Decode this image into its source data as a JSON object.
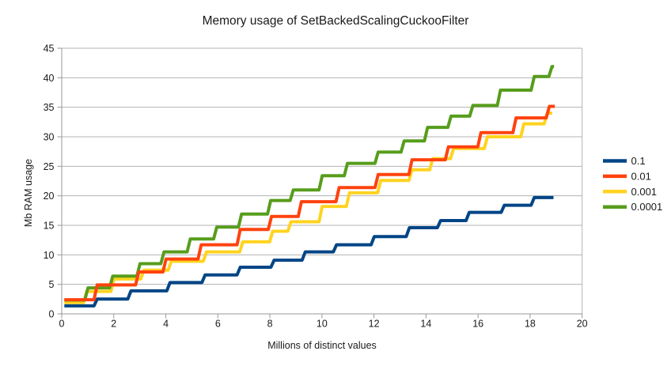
{
  "chart_data": {
    "type": "line",
    "step": true,
    "title": "Memory usage of SetBackedScalingCuckooFilter",
    "xlabel": "Millions of distinct values",
    "ylabel": "Mb RAM usage",
    "xlim": [
      0,
      20
    ],
    "ylim": [
      0,
      45
    ],
    "xticks": [
      0,
      2,
      4,
      6,
      8,
      10,
      12,
      14,
      16,
      18,
      20
    ],
    "yticks": [
      0,
      5,
      10,
      15,
      20,
      25,
      30,
      35,
      40,
      45
    ],
    "grid": "horizontal-only",
    "legend_position": "right",
    "style": {
      "background": "#ffffff",
      "grid_color": "#b3b3b3",
      "axis_color": "#999999",
      "text_color": "#1a1a1a"
    },
    "series": [
      {
        "name": "0.1",
        "color": "#004586",
        "z": 2,
        "end_x": 18.9,
        "points": [
          [
            0.1,
            1.35
          ],
          [
            1.3,
            2.5
          ],
          [
            2.6,
            3.9
          ],
          [
            4.1,
            5.3
          ],
          [
            5.45,
            6.6
          ],
          [
            6.8,
            7.9
          ],
          [
            8.1,
            9.1
          ],
          [
            9.3,
            10.5
          ],
          [
            10.5,
            11.7
          ],
          [
            11.95,
            13.1
          ],
          [
            13.3,
            14.6
          ],
          [
            14.5,
            15.8
          ],
          [
            15.6,
            17.2
          ],
          [
            16.95,
            18.4
          ],
          [
            18.1,
            19.7
          ]
        ]
      },
      {
        "name": "0.01",
        "color": "#ff420e",
        "z": 3,
        "end_x": 18.95,
        "points": [
          [
            0.1,
            2.4
          ],
          [
            1.3,
            4.9
          ],
          [
            2.9,
            7.1
          ],
          [
            3.95,
            9.3
          ],
          [
            5.3,
            11.7
          ],
          [
            6.8,
            14.3
          ],
          [
            8.0,
            16.5
          ],
          [
            9.15,
            19.0
          ],
          [
            10.6,
            21.4
          ],
          [
            12.1,
            23.6
          ],
          [
            13.4,
            26.1
          ],
          [
            14.8,
            28.3
          ],
          [
            16.05,
            30.7
          ],
          [
            17.4,
            33.2
          ],
          [
            18.68,
            35.15
          ]
        ]
      },
      {
        "name": "0.001",
        "color": "#ffd320",
        "z": 0,
        "end_x": 18.85,
        "points": [
          [
            0.1,
            1.9
          ],
          [
            0.9,
            3.8
          ],
          [
            1.95,
            5.9
          ],
          [
            3.1,
            7.4
          ],
          [
            4.15,
            8.9
          ],
          [
            5.5,
            10.5
          ],
          [
            6.9,
            12.2
          ],
          [
            8.05,
            14.0
          ],
          [
            8.75,
            15.6
          ],
          [
            9.95,
            18.2
          ],
          [
            11.0,
            20.5
          ],
          [
            12.2,
            22.6
          ],
          [
            13.4,
            24.4
          ],
          [
            14.2,
            26.3
          ],
          [
            15.0,
            28.0
          ],
          [
            16.3,
            30.0
          ],
          [
            17.7,
            32.2
          ],
          [
            18.6,
            34.0
          ]
        ]
      },
      {
        "name": "0.0001",
        "color": "#579d1c",
        "z": 1,
        "end_x": 18.92,
        "points": [
          [
            0.1,
            2.35
          ],
          [
            0.95,
            4.4
          ],
          [
            1.9,
            6.4
          ],
          [
            2.95,
            8.5
          ],
          [
            3.87,
            10.5
          ],
          [
            4.88,
            12.7
          ],
          [
            5.9,
            14.7
          ],
          [
            6.85,
            16.9
          ],
          [
            7.97,
            19.2
          ],
          [
            8.84,
            21.0
          ],
          [
            9.95,
            23.4
          ],
          [
            10.92,
            25.5
          ],
          [
            12.1,
            27.4
          ],
          [
            13.1,
            29.3
          ],
          [
            14.0,
            31.6
          ],
          [
            14.9,
            33.5
          ],
          [
            15.74,
            35.3
          ],
          [
            16.8,
            37.9
          ],
          [
            18.1,
            40.2
          ],
          [
            18.78,
            41.9
          ]
        ]
      }
    ]
  }
}
